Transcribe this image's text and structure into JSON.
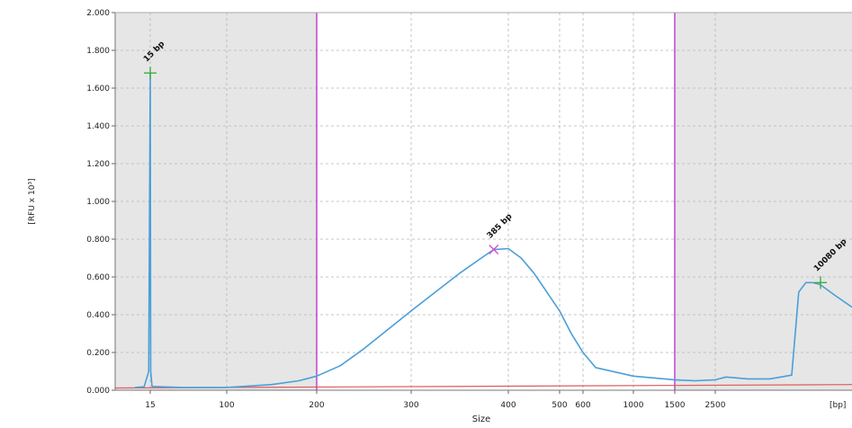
{
  "chart_data": {
    "type": "line",
    "xlabel": "Size",
    "ylabel": "[RFU x 10³]",
    "x_unit_label": "[bp]",
    "ylim": [
      0,
      2.0
    ],
    "y_ticks": [
      "0.000",
      "0.200",
      "0.400",
      "0.600",
      "0.800",
      "1.000",
      "1.200",
      "1.400",
      "1.600",
      "1.800",
      "2.000"
    ],
    "x_ticks": [
      {
        "label": "15",
        "x": 15
      },
      {
        "label": "100",
        "x": 100
      },
      {
        "label": "200",
        "x": 200
      },
      {
        "label": "300",
        "x": 300
      },
      {
        "label": "400",
        "x": 400
      },
      {
        "label": "500",
        "x": 500
      },
      {
        "label": "600",
        "x": 600
      },
      {
        "label": "1000",
        "x": 1000
      },
      {
        "label": "1500",
        "x": 1500
      },
      {
        "label": "2500",
        "x": 2500
      }
    ],
    "region_markers": [
      200,
      1500
    ],
    "grid": true,
    "colors": {
      "trace": "#4a9fd8",
      "baseline": "#e05a5a",
      "marker": "#c050d0",
      "shade": "#e6e6e6",
      "lower_peak": "#3cb043",
      "main_peak": "#d050d0"
    },
    "series": [
      {
        "values": [
          {
            "x": 10,
            "y": 0.015
          },
          {
            "x": 13,
            "y": 0.018
          },
          {
            "x": 14.5,
            "y": 0.1
          },
          {
            "x": 15,
            "y": 1.68
          },
          {
            "x": 15.5,
            "y": 0.1
          },
          {
            "x": 17,
            "y": 0.02
          },
          {
            "x": 50,
            "y": 0.015
          },
          {
            "x": 100,
            "y": 0.015
          },
          {
            "x": 150,
            "y": 0.03
          },
          {
            "x": 180,
            "y": 0.05
          },
          {
            "x": 200,
            "y": 0.075
          },
          {
            "x": 225,
            "y": 0.13
          },
          {
            "x": 250,
            "y": 0.22
          },
          {
            "x": 275,
            "y": 0.32
          },
          {
            "x": 300,
            "y": 0.42
          },
          {
            "x": 325,
            "y": 0.52
          },
          {
            "x": 350,
            "y": 0.62
          },
          {
            "x": 375,
            "y": 0.71
          },
          {
            "x": 385,
            "y": 0.745
          },
          {
            "x": 400,
            "y": 0.75
          },
          {
            "x": 425,
            "y": 0.7
          },
          {
            "x": 450,
            "y": 0.62
          },
          {
            "x": 475,
            "y": 0.52
          },
          {
            "x": 500,
            "y": 0.42
          },
          {
            "x": 550,
            "y": 0.3
          },
          {
            "x": 600,
            "y": 0.2
          },
          {
            "x": 700,
            "y": 0.12
          },
          {
            "x": 1000,
            "y": 0.075
          },
          {
            "x": 1500,
            "y": 0.055
          },
          {
            "x": 2000,
            "y": 0.05
          },
          {
            "x": 2500,
            "y": 0.055
          },
          {
            "x": 3000,
            "y": 0.07
          },
          {
            "x": 4000,
            "y": 0.06
          },
          {
            "x": 5000,
            "y": 0.06
          },
          {
            "x": 6000,
            "y": 0.08
          },
          {
            "x": 6500,
            "y": 0.3
          },
          {
            "x": 7000,
            "y": 0.52
          },
          {
            "x": 8000,
            "y": 0.57
          },
          {
            "x": 9000,
            "y": 0.57
          },
          {
            "x": 10000,
            "y": 0.56
          },
          {
            "x": 11000,
            "y": 0.5
          },
          {
            "x": 12000,
            "y": 0.44
          }
        ]
      }
    ],
    "peaks": [
      {
        "label": "15 bp",
        "x": 15,
        "y": 1.68,
        "marker": "plus",
        "color": "#3cb043"
      },
      {
        "label": "385 bp",
        "x": 385,
        "y": 0.745,
        "marker": "x",
        "color": "#d050d0"
      },
      {
        "label": "10080 bp",
        "x": 10080,
        "y": 0.57,
        "marker": "plus",
        "color": "#3cb043"
      }
    ]
  }
}
